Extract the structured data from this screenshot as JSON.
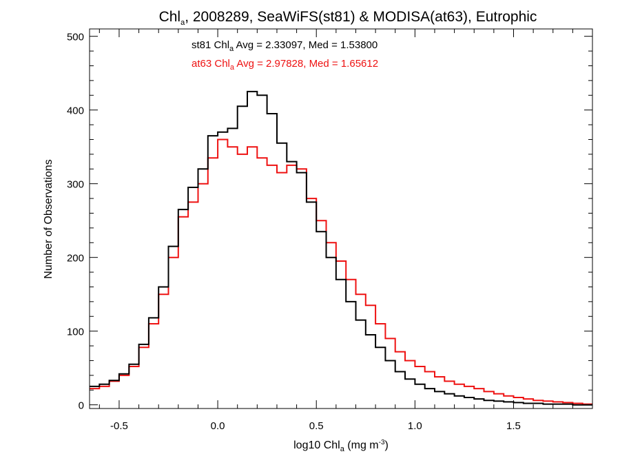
{
  "chart_data": {
    "type": "line",
    "title_prefix": "Chl",
    "title_sub": "a",
    "title_suffix": ", 2008289, SeaWiFS(st81) & MODISA(at63), Eutrophic",
    "xlabel_prefix": "log10 Chl",
    "xlabel_sub": "a",
    "xlabel_mid": " (mg m",
    "xlabel_sup": "-3",
    "xlabel_suffix": ")",
    "ylabel": "Number of Observations",
    "xlim": [
      -0.65,
      1.9
    ],
    "ylim": [
      -5,
      510
    ],
    "x_ticks": [
      -0.5,
      0.0,
      0.5,
      1.0,
      1.5
    ],
    "x_tick_labels": [
      "-0.5",
      "0.0",
      "0.5",
      "1.0",
      "1.5"
    ],
    "y_ticks": [
      0,
      100,
      200,
      300,
      400,
      500
    ],
    "y_tick_labels": [
      "0",
      "100",
      "200",
      "300",
      "400",
      "500"
    ],
    "grid": false,
    "series": [
      {
        "name": "st81",
        "stat_prefix": "st81 Chl",
        "stat_sub": "a",
        "stat_suffix": " Avg = 2.33097, Med = 1.53800",
        "color": "#000000",
        "x": [
          -0.65,
          -0.6,
          -0.55,
          -0.5,
          -0.45,
          -0.4,
          -0.35,
          -0.3,
          -0.25,
          -0.2,
          -0.15,
          -0.1,
          -0.05,
          0.0,
          0.05,
          0.1,
          0.15,
          0.2,
          0.25,
          0.3,
          0.35,
          0.4,
          0.45,
          0.5,
          0.55,
          0.6,
          0.65,
          0.7,
          0.75,
          0.8,
          0.85,
          0.9,
          0.95,
          1.0,
          1.05,
          1.1,
          1.15,
          1.2,
          1.25,
          1.3,
          1.35,
          1.4,
          1.45,
          1.5,
          1.55,
          1.6,
          1.65,
          1.7,
          1.75,
          1.8,
          1.85,
          1.9
        ],
        "y": [
          25,
          28,
          33,
          42,
          55,
          82,
          118,
          160,
          215,
          265,
          295,
          320,
          365,
          370,
          375,
          405,
          425,
          420,
          395,
          355,
          330,
          315,
          275,
          235,
          200,
          170,
          140,
          115,
          95,
          78,
          60,
          45,
          35,
          28,
          22,
          18,
          15,
          12,
          10,
          8,
          6,
          5,
          4,
          3,
          2,
          2,
          1,
          1,
          1,
          0,
          0,
          0
        ]
      },
      {
        "name": "at63",
        "stat_prefix": "at63 Chl",
        "stat_sub": "a",
        "stat_suffix": " Avg = 2.97828, Med = 1.65612",
        "color": "#ee1111",
        "x": [
          -0.65,
          -0.6,
          -0.55,
          -0.5,
          -0.45,
          -0.4,
          -0.35,
          -0.3,
          -0.25,
          -0.2,
          -0.15,
          -0.1,
          -0.05,
          0.0,
          0.05,
          0.1,
          0.15,
          0.2,
          0.25,
          0.3,
          0.35,
          0.4,
          0.45,
          0.5,
          0.55,
          0.6,
          0.65,
          0.7,
          0.75,
          0.8,
          0.85,
          0.9,
          0.95,
          1.0,
          1.05,
          1.1,
          1.15,
          1.2,
          1.25,
          1.3,
          1.35,
          1.4,
          1.45,
          1.5,
          1.55,
          1.6,
          1.65,
          1.7,
          1.75,
          1.8,
          1.85,
          1.9
        ],
        "y": [
          22,
          25,
          32,
          40,
          52,
          78,
          110,
          150,
          200,
          255,
          275,
          300,
          335,
          360,
          350,
          340,
          350,
          335,
          325,
          315,
          325,
          320,
          280,
          250,
          220,
          195,
          170,
          150,
          135,
          110,
          90,
          72,
          60,
          52,
          45,
          38,
          32,
          28,
          25,
          22,
          18,
          15,
          12,
          10,
          8,
          6,
          5,
          4,
          3,
          2,
          1,
          1
        ]
      }
    ]
  }
}
